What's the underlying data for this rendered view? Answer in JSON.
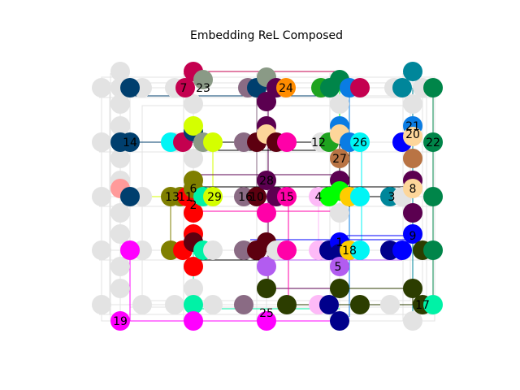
{
  "figure": {
    "title": "Embedding ReL Composed"
  },
  "colors": {
    "grid_gray": "#e3e3e3",
    "navy": "#003f6e",
    "crimson": "#c4004f",
    "sage": "#8a9a86",
    "mauve": "#8a6b84",
    "plum": "#5b0050",
    "orange": "#ff8c00",
    "green": "#1fa31f",
    "blue_bright": "#0a7ce3",
    "teal": "#00869a",
    "dark_green": "#008549",
    "light_gray": "#e3e3e3",
    "cyan": "#00f5f5",
    "lime": "#d4ff00",
    "peach": "#fdd69a",
    "magenta_hot": "#ff00a8",
    "brown": "#b97444",
    "salmon": "#ff9a9a",
    "olive": "#7f7f00",
    "red": "#ff0000",
    "mint": "#00f2a6",
    "lavender": "#fdbaf7",
    "bright_green": "#00ff00",
    "gold": "#ffcc00",
    "blue": "#0000ff",
    "dark_red": "#5d0010",
    "purple": "#b25cf0",
    "deep_olive": "#2c3d00",
    "magenta": "#ff00ff",
    "dark_blue": "#00008b"
  },
  "node_labels": [
    "7",
    "23",
    "24",
    "14",
    "12",
    "26",
    "27",
    "21",
    "20",
    "22",
    "28",
    "6",
    "13",
    "11",
    "2",
    "29",
    "16",
    "10",
    "15",
    "4",
    "3",
    "8",
    "1",
    "18",
    "9",
    "5",
    "19",
    "25",
    "17"
  ]
}
